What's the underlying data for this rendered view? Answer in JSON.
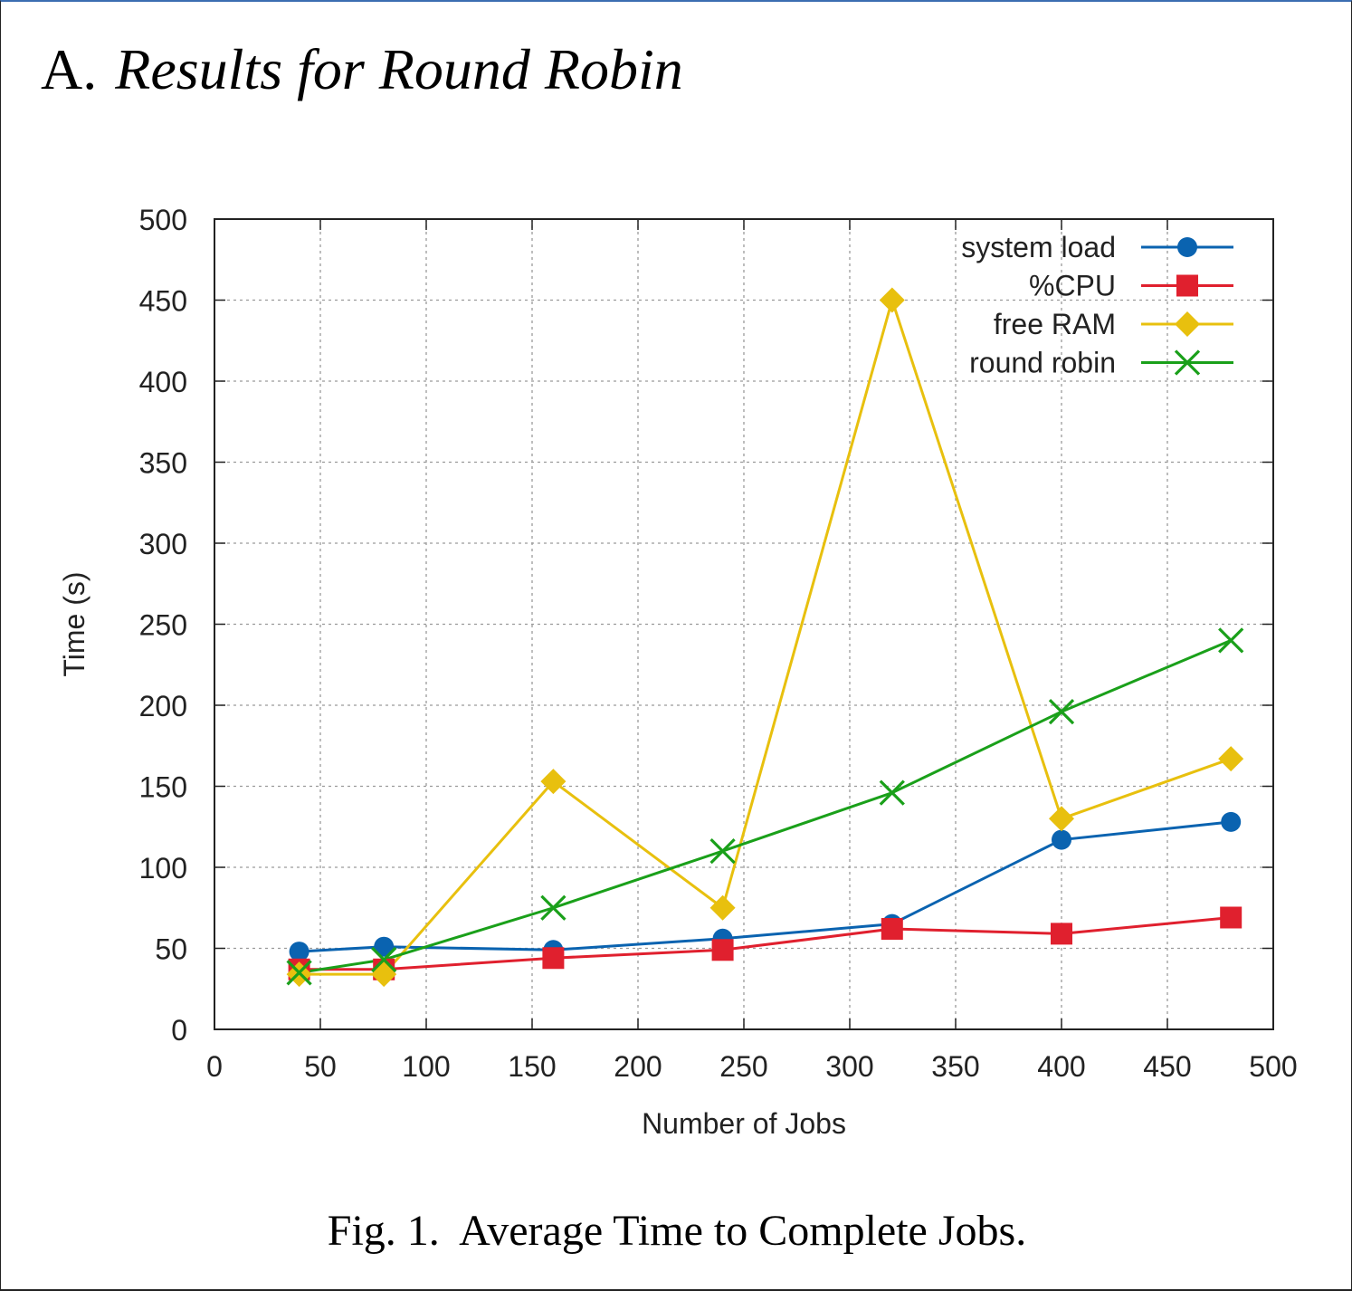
{
  "heading": {
    "number": "A.",
    "title": "Results for Round Robin"
  },
  "caption": "Fig. 1.  Average Time to Complete Jobs.",
  "chart_data": {
    "type": "line",
    "xlabel": "Number of Jobs",
    "ylabel": "Time (s)",
    "xlim": [
      0,
      500
    ],
    "ylim": [
      0,
      500
    ],
    "xticks": [
      "0",
      "50",
      "100",
      "150",
      "200",
      "250",
      "300",
      "350",
      "400",
      "450",
      "500"
    ],
    "yticks": [
      "0",
      "50",
      "100",
      "150",
      "200",
      "250",
      "300",
      "350",
      "400",
      "450",
      "500"
    ],
    "grid": true,
    "legend_position": "top-right",
    "x": [
      40,
      80,
      160,
      240,
      320,
      400,
      480
    ],
    "series": [
      {
        "name": "system load",
        "color": "#0a63b0",
        "marker": "circle",
        "values": [
          48,
          51,
          49,
          56,
          65,
          117,
          128
        ]
      },
      {
        "name": "%CPU",
        "color": "#e0202e",
        "marker": "square",
        "values": [
          37,
          37,
          44,
          49,
          62,
          59,
          69
        ]
      },
      {
        "name": "free RAM",
        "color": "#e8c00e",
        "marker": "diamond",
        "values": [
          34,
          34,
          153,
          75,
          450,
          130,
          167
        ]
      },
      {
        "name": "round robin",
        "color": "#1aa01a",
        "marker": "cross",
        "values": [
          35,
          43,
          75,
          110,
          146,
          196,
          240
        ]
      }
    ]
  }
}
